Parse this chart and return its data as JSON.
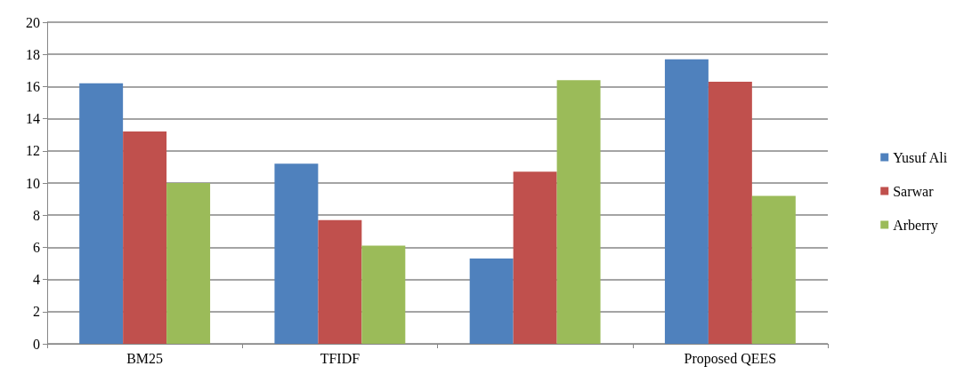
{
  "chart_data": {
    "type": "bar",
    "categories": [
      "BM25",
      "TFIDF",
      null,
      "Proposed QEES"
    ],
    "series": [
      {
        "name": "Yusuf Ali",
        "color": "#4f81bd",
        "values": [
          16.2,
          11.2,
          5.3,
          17.7
        ]
      },
      {
        "name": "Sarwar",
        "color": "#c0504d",
        "values": [
          13.2,
          7.7,
          10.7,
          16.3
        ]
      },
      {
        "name": "Arberry",
        "color": "#9bbb59",
        "values": [
          10.0,
          6.1,
          16.4,
          9.2
        ]
      }
    ],
    "ylim": [
      0,
      20
    ],
    "yticks": [
      0,
      2,
      4,
      6,
      8,
      10,
      12,
      14,
      16,
      18,
      20
    ],
    "grid": "y",
    "legend": "right"
  }
}
